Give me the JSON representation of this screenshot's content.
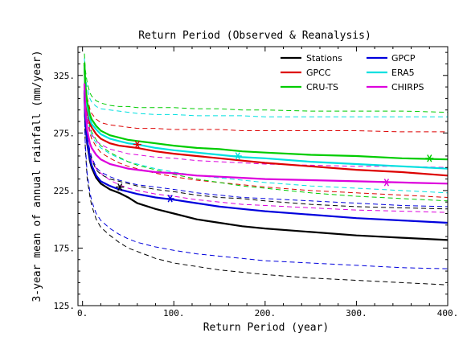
{
  "chart_data": {
    "type": "line",
    "title": "Return Period (Observed & Reanalysis)",
    "xlabel": "Return Period (year)",
    "ylabel": "3-year mean of annual rainfall (mm/year)",
    "xlim": [
      -5,
      400
    ],
    "ylim": [
      125,
      350
    ],
    "x_ticks": [
      0,
      100,
      200,
      300,
      400
    ],
    "x_tick_labels": [
      "0.",
      "100.",
      "200.",
      "300.",
      "400."
    ],
    "y_ticks": [
      125,
      175,
      225,
      275,
      325
    ],
    "y_tick_labels": [
      "125.",
      "175.",
      "225.",
      "275.",
      "325."
    ],
    "legend_position": "top-right",
    "x": [
      2,
      3,
      5,
      8,
      10,
      15,
      20,
      30,
      40,
      50,
      60,
      80,
      100,
      125,
      150,
      175,
      200,
      250,
      300,
      350,
      400
    ],
    "series": [
      {
        "name": "Stations",
        "color": "#000000",
        "values": [
          310,
          287,
          266,
          251,
          245,
          236,
          231,
          226,
          223,
          219,
          214,
          209,
          205,
          200,
          197,
          194,
          192,
          189,
          186,
          184,
          182
        ],
        "upper": [
          304,
          285,
          270,
          258,
          252,
          243,
          239,
          235,
          233,
          231,
          229,
          226,
          224,
          221,
          219,
          218,
          216,
          213,
          211,
          210,
          209
        ],
        "lower": [
          300,
          262,
          236,
          220,
          212,
          200,
          193,
          186,
          180,
          175,
          172,
          166,
          162,
          159,
          156,
          154,
          152,
          149,
          147,
          145,
          143
        ],
        "marker": [
          41,
          228
        ]
      },
      {
        "name": "GPCP",
        "color": "#0000dd",
        "values": [
          312,
          289,
          268,
          253,
          247,
          238,
          233,
          229,
          226,
          224,
          222,
          219,
          217,
          214,
          211,
          209,
          207,
          204,
          201,
          199,
          197
        ],
        "upper": [
          306,
          286,
          272,
          260,
          254,
          245,
          241,
          237,
          234,
          232,
          230,
          228,
          226,
          223,
          221,
          219,
          218,
          216,
          214,
          212,
          211
        ],
        "lower": [
          298,
          266,
          240,
          224,
          216,
          205,
          199,
          192,
          187,
          183,
          180,
          176,
          173,
          170,
          168,
          166,
          164,
          162,
          160,
          158,
          157
        ],
        "marker": [
          96,
          218
        ]
      },
      {
        "name": "GPCC",
        "color": "#dd0000",
        "values": [
          335,
          311,
          295,
          284,
          280,
          274,
          270,
          266,
          264,
          263,
          262,
          259,
          257,
          255,
          253,
          251,
          249,
          246,
          243,
          241,
          238
        ],
        "upper": [
          334,
          319,
          306,
          296,
          292,
          287,
          284,
          282,
          281,
          280,
          279,
          279,
          278,
          278,
          278,
          277,
          277,
          277,
          277,
          276,
          276
        ],
        "lower": [
          322,
          303,
          287,
          275,
          270,
          263,
          258,
          253,
          249,
          246,
          244,
          240,
          237,
          234,
          232,
          230,
          228,
          225,
          223,
          221,
          219
        ],
        "marker": [
          60,
          265
        ]
      },
      {
        "name": "ERA5",
        "color": "#00e0e0",
        "values": [
          334,
          315,
          298,
          287,
          283,
          278,
          274,
          270,
          268,
          266,
          265,
          262,
          260,
          258,
          256,
          254,
          253,
          250,
          248,
          246,
          244
        ],
        "upper": [
          340,
          325,
          314,
          305,
          302,
          298,
          296,
          295,
          294,
          293,
          292,
          291,
          291,
          290,
          290,
          290,
          289,
          289,
          289,
          289,
          289
        ],
        "lower": [
          324,
          306,
          290,
          278,
          273,
          266,
          262,
          257,
          253,
          250,
          248,
          244,
          241,
          238,
          236,
          234,
          232,
          229,
          227,
          225,
          223
        ],
        "marker": [
          170,
          255
        ]
      },
      {
        "name": "CRU-TS",
        "color": "#00cc00",
        "values": [
          336,
          318,
          302,
          291,
          287,
          281,
          277,
          273,
          271,
          269,
          268,
          266,
          264,
          262,
          261,
          259,
          258,
          256,
          255,
          253,
          252
        ],
        "upper": [
          344,
          330,
          319,
          310,
          307,
          303,
          301,
          299,
          298,
          298,
          297,
          297,
          297,
          296,
          296,
          295,
          295,
          294,
          294,
          294,
          293
        ],
        "lower": [
          326,
          308,
          292,
          281,
          276,
          269,
          264,
          258,
          254,
          250,
          247,
          243,
          239,
          235,
          232,
          229,
          227,
          223,
          220,
          218,
          216
        ],
        "marker": [
          380,
          253
        ]
      },
      {
        "name": "CHIRPS",
        "color": "#dd00dd",
        "values": [
          318,
          296,
          278,
          266,
          262,
          256,
          252,
          248,
          246,
          244,
          243,
          241,
          240,
          238,
          237,
          236,
          235,
          234,
          233,
          232,
          231
        ],
        "upper": [
          322,
          303,
          288,
          278,
          274,
          268,
          265,
          261,
          259,
          257,
          256,
          254,
          253,
          251,
          250,
          249,
          248,
          247,
          246,
          246,
          245
        ],
        "lower": [
          308,
          288,
          270,
          257,
          252,
          244,
          240,
          234,
          230,
          227,
          225,
          222,
          220,
          217,
          215,
          213,
          212,
          210,
          208,
          207,
          206
        ],
        "marker": [
          333,
          232
        ]
      }
    ]
  }
}
